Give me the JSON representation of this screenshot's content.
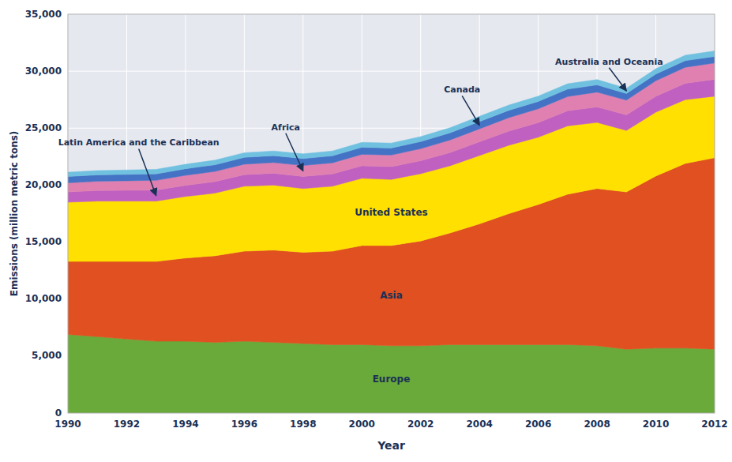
{
  "chart_data": {
    "type": "area",
    "stacked": true,
    "grid": true,
    "xlabel": "Year",
    "ylabel": "Emissions (million metric tons)",
    "x": [
      1990,
      1991,
      1992,
      1993,
      1994,
      1995,
      1996,
      1997,
      1998,
      1999,
      2000,
      2001,
      2002,
      2003,
      2004,
      2005,
      2006,
      2007,
      2008,
      2009,
      2010,
      2011,
      2012
    ],
    "xlim": [
      1990,
      2012
    ],
    "xticks": [
      1990,
      1992,
      1994,
      1996,
      1998,
      2000,
      2002,
      2004,
      2006,
      2008,
      2010,
      2012
    ],
    "ylim": [
      0,
      35000
    ],
    "yticks": [
      0,
      {
        "value": 5000,
        "label": "5,000"
      },
      {
        "value": 10000,
        "label": "10,000"
      },
      {
        "value": 15000,
        "label": "15,000"
      },
      {
        "value": 20000,
        "label": "20,000"
      },
      {
        "value": 25000,
        "label": "25,000"
      },
      {
        "value": 30000,
        "label": "30,000"
      },
      {
        "value": 35000,
        "label": "35,000"
      }
    ],
    "series": [
      {
        "name": "Europe",
        "color": "#6aaa3a",
        "values": [
          6900,
          6700,
          6500,
          6300,
          6300,
          6200,
          6300,
          6200,
          6100,
          6000,
          6000,
          5900,
          5900,
          6000,
          6000,
          6000,
          6000,
          6000,
          5900,
          5600,
          5700,
          5700,
          5600
        ]
      },
      {
        "name": "Asia",
        "color": "#e05020",
        "values": [
          6400,
          6600,
          6800,
          7000,
          7300,
          7600,
          7900,
          8100,
          8000,
          8200,
          8700,
          8800,
          9200,
          9800,
          10600,
          11500,
          12300,
          13200,
          13800,
          13800,
          15100,
          16200,
          16800
        ]
      },
      {
        "name": "United States",
        "color": "#ffe000",
        "values": [
          5200,
          5300,
          5300,
          5300,
          5400,
          5500,
          5700,
          5700,
          5600,
          5700,
          5900,
          5800,
          5900,
          5900,
          6000,
          6000,
          5900,
          6000,
          5800,
          5400,
          5600,
          5600,
          5400
        ]
      },
      {
        "name": "Latin America and the Caribbean",
        "color": "#c060c0",
        "values": [
          900,
          920,
          940,
          960,
          980,
          1000,
          1020,
          1040,
          1060,
          1080,
          1100,
          1120,
          1140,
          1160,
          1200,
          1240,
          1280,
          1320,
          1360,
          1360,
          1400,
          1440,
          1480
        ]
      },
      {
        "name": "Africa",
        "color": "#e080b0",
        "values": [
          800,
          820,
          840,
          860,
          880,
          900,
          920,
          940,
          960,
          980,
          1000,
          1020,
          1060,
          1100,
          1140,
          1180,
          1220,
          1260,
          1300,
          1300,
          1360,
          1400,
          1440
        ]
      },
      {
        "name": "Canada",
        "color": "#4472c4",
        "values": [
          550,
          555,
          560,
          570,
          578,
          585,
          595,
          605,
          610,
          612,
          620,
          618,
          622,
          630,
          638,
          642,
          645,
          648,
          635,
          580,
          582,
          582,
          570
        ]
      },
      {
        "name": "Australia and Oceania",
        "color": "#70c0e0",
        "values": [
          380,
          385,
          390,
          395,
          400,
          405,
          410,
          415,
          420,
          425,
          430,
          435,
          440,
          450,
          460,
          465,
          470,
          475,
          470,
          465,
          475,
          480,
          490
        ]
      }
    ]
  }
}
